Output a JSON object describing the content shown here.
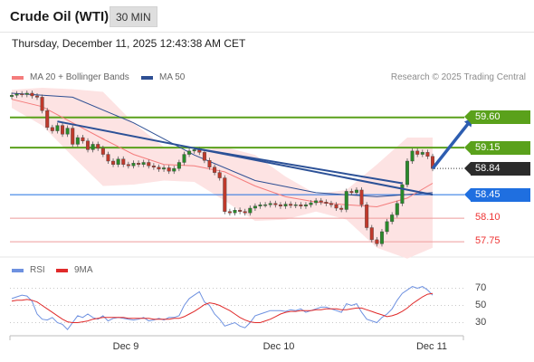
{
  "header": {
    "title": "Crude Oil (WTI)",
    "timeframe": "30 MIN"
  },
  "timestamp": "Thursday, December 11, 2025 12:43:38 AM CET",
  "legend": {
    "ma20_label": "MA 20 + Bollinger Bands",
    "ma50_label": "MA 50",
    "credit": "Research © 2025 Trading Central"
  },
  "rsi_legend": {
    "rsi_label": "RSI",
    "ma9_label": "9MA"
  },
  "colors": {
    "ma20": "#f47c7c",
    "ma50": "#2e4f93",
    "band_fill": "#fde3e3",
    "trendline": "#2c5197",
    "support_resistance_green": "#5aa11b",
    "pivot_blue": "#1f6fe0",
    "limit_red": "#ee9a9a",
    "current_price": "#2b2b2b",
    "arrow": "#2d5db0",
    "rsi_line": "#6e91e0",
    "rsi_ma9": "#e02a2a"
  },
  "chart_data": [
    {
      "type": "line",
      "title": "Crude Oil (WTI) 30 MIN",
      "x_tick_labels": [
        "Dec 9",
        "Dec 10",
        "Dec 11"
      ],
      "ylim": [
        57.55,
        60.0
      ],
      "current_price": 58.84,
      "levels": [
        {
          "value": 59.6,
          "label": "59.60",
          "style": "green-tag"
        },
        {
          "value": 59.15,
          "label": "59.15",
          "style": "green-tag"
        },
        {
          "value": 58.84,
          "label": "58.84",
          "style": "dark-tag"
        },
        {
          "value": 58.45,
          "label": "58.45",
          "style": "blue-tag"
        },
        {
          "value": 58.1,
          "label": "58.10",
          "style": "red-text"
        },
        {
          "value": 57.75,
          "label": "57.75",
          "style": "red-text"
        }
      ],
      "close": [
        59.93,
        59.95,
        59.94,
        59.96,
        59.92,
        59.9,
        59.7,
        59.45,
        59.4,
        59.48,
        59.35,
        59.44,
        59.2,
        59.3,
        59.25,
        59.12,
        59.2,
        59.14,
        59.05,
        58.95,
        58.9,
        58.98,
        58.9,
        58.88,
        58.92,
        58.9,
        58.93,
        58.88,
        58.86,
        58.83,
        58.85,
        58.8,
        58.84,
        58.93,
        59.05,
        59.1,
        59.12,
        59.08,
        58.96,
        58.86,
        58.78,
        58.7,
        58.2,
        58.18,
        58.22,
        58.2,
        58.18,
        58.25,
        58.28,
        58.3,
        58.3,
        58.32,
        58.3,
        58.28,
        58.31,
        58.29,
        58.3,
        58.28,
        58.3,
        58.33,
        58.36,
        58.34,
        58.32,
        58.3,
        58.25,
        58.23,
        58.5,
        58.48,
        58.52,
        58.3,
        57.96,
        57.78,
        57.72,
        57.9,
        58.05,
        58.15,
        58.32,
        58.6,
        58.95,
        59.1,
        59.05,
        59.08,
        59.02,
        58.84
      ],
      "ma20_points": [
        [
          0,
          59.87
        ],
        [
          6,
          59.76
        ],
        [
          12,
          59.52
        ],
        [
          18,
          59.28
        ],
        [
          24,
          59.05
        ],
        [
          30,
          58.9
        ],
        [
          36,
          58.88
        ],
        [
          42,
          58.79
        ],
        [
          48,
          58.58
        ],
        [
          54,
          58.42
        ],
        [
          60,
          58.34
        ],
        [
          66,
          58.3
        ],
        [
          72,
          58.27
        ],
        [
          78,
          58.4
        ],
        [
          83,
          58.62
        ]
      ],
      "bb_upper": [
        [
          0,
          60.01
        ],
        [
          6,
          60.04
        ],
        [
          12,
          60.02
        ],
        [
          18,
          59.98
        ],
        [
          24,
          59.52
        ],
        [
          30,
          59.16
        ],
        [
          36,
          59.1
        ],
        [
          42,
          59.16
        ],
        [
          48,
          59.04
        ],
        [
          54,
          58.72
        ],
        [
          60,
          58.46
        ],
        [
          66,
          58.52
        ],
        [
          72,
          58.9
        ],
        [
          78,
          59.3
        ],
        [
          83,
          59.3
        ]
      ],
      "bb_lower": [
        [
          0,
          59.74
        ],
        [
          6,
          59.48
        ],
        [
          12,
          59.02
        ],
        [
          18,
          58.58
        ],
        [
          24,
          58.6
        ],
        [
          30,
          58.66
        ],
        [
          36,
          58.64
        ],
        [
          42,
          58.36
        ],
        [
          48,
          58.06
        ],
        [
          54,
          58.08
        ],
        [
          60,
          58.2
        ],
        [
          66,
          58.08
        ],
        [
          72,
          57.66
        ],
        [
          78,
          57.5
        ],
        [
          83,
          57.66
        ]
      ],
      "ma50_points": [
        [
          0,
          59.96
        ],
        [
          12,
          59.9
        ],
        [
          24,
          59.52
        ],
        [
          36,
          59.04
        ],
        [
          48,
          58.66
        ],
        [
          60,
          58.48
        ],
        [
          72,
          58.42
        ],
        [
          83,
          58.48
        ]
      ],
      "trendlines": [
        {
          "from": [
            9,
            59.54
          ],
          "to": [
            83,
            58.45
          ]
        },
        {
          "from": [
            36,
            59.14
          ],
          "to": [
            77,
            58.62
          ]
        }
      ],
      "projection_arrow": {
        "from": [
          83,
          58.84
        ],
        "to": [
          91,
          59.6
        ]
      }
    },
    {
      "type": "line",
      "title": "RSI",
      "ylim": [
        20,
        80
      ],
      "y_ticks": [
        30,
        50,
        70
      ],
      "rsi": [
        58,
        60,
        62,
        61,
        55,
        40,
        34,
        33,
        36,
        30,
        28,
        22,
        30,
        38,
        36,
        40,
        36,
        34,
        38,
        32,
        35,
        36,
        35,
        34,
        33,
        34,
        36,
        32,
        33,
        35,
        33,
        36,
        36,
        38,
        50,
        58,
        62,
        66,
        54,
        50,
        40,
        34,
        26,
        28,
        30,
        26,
        24,
        30,
        38,
        40,
        42,
        44,
        44,
        44,
        43,
        45,
        44,
        46,
        42,
        44,
        46,
        48,
        48,
        46,
        44,
        42,
        52,
        50,
        52,
        42,
        34,
        32,
        30,
        36,
        40,
        46,
        56,
        64,
        68,
        72,
        70,
        72,
        68,
        62
      ],
      "rsi_ma9": [
        55,
        56,
        56,
        57,
        56,
        54,
        50,
        46,
        42,
        38,
        34,
        31,
        30,
        30,
        31,
        32,
        34,
        35,
        36,
        36,
        36,
        36,
        36,
        35,
        35,
        35,
        35,
        35,
        34,
        34,
        34,
        34,
        35,
        35,
        37,
        40,
        43,
        47,
        51,
        53,
        52,
        50,
        47,
        44,
        40,
        36,
        33,
        31,
        30,
        30,
        32,
        34,
        37,
        40,
        42,
        43,
        43,
        44,
        44,
        44,
        45,
        45,
        46,
        46,
        46,
        45,
        45,
        46,
        47,
        47,
        45,
        43,
        41,
        39,
        37,
        38,
        40,
        43,
        47,
        52,
        56,
        60,
        63,
        64
      ]
    }
  ],
  "time_axis": {
    "labels": [
      "Dec 9",
      "Dec 10",
      "Dec 11"
    ]
  }
}
